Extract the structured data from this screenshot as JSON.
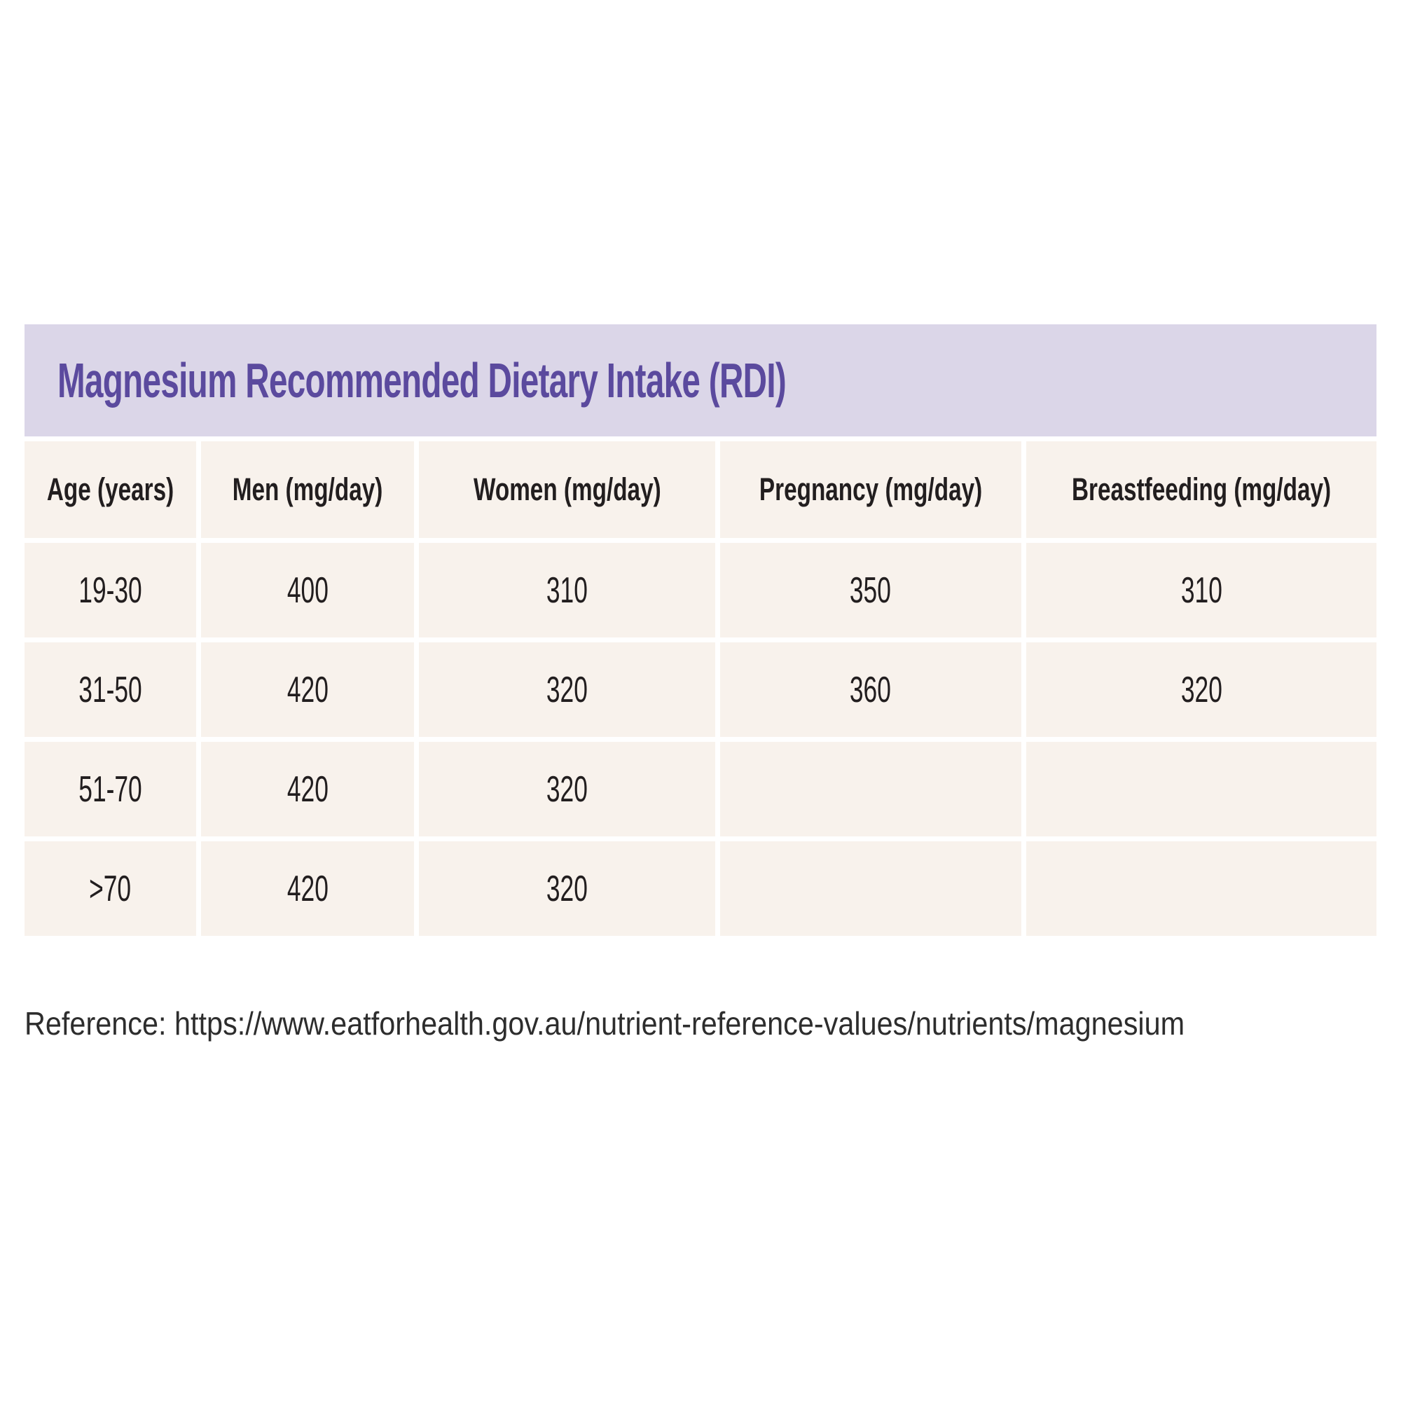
{
  "chart_data": {
    "type": "table",
    "title": "Magnesium Recommended Dietary Intake (RDI)",
    "columns": [
      "Age (years)",
      "Men (mg/day)",
      "Women (mg/day)",
      "Pregnancy (mg/day)",
      "Breastfeeding (mg/day)"
    ],
    "rows": [
      [
        "19-30",
        "400",
        "310",
        "350",
        "310"
      ],
      [
        "31-50",
        "420",
        "320",
        "360",
        "320"
      ],
      [
        "51-70",
        "420",
        "320",
        "",
        ""
      ],
      [
        ">70",
        "420",
        "320",
        "",
        ""
      ]
    ],
    "reference": "Reference: https://www.eatforhealth.gov.au/nutrient-reference-values/nutrients/magnesium"
  },
  "colors": {
    "banner_bg": "#dbd6e8",
    "title_text": "#5b4a9e",
    "cell_bg": "#f8f2ec",
    "cell_text": "#221e1f",
    "reference_text": "#2d2d2d",
    "page_bg": "#ffffff"
  }
}
